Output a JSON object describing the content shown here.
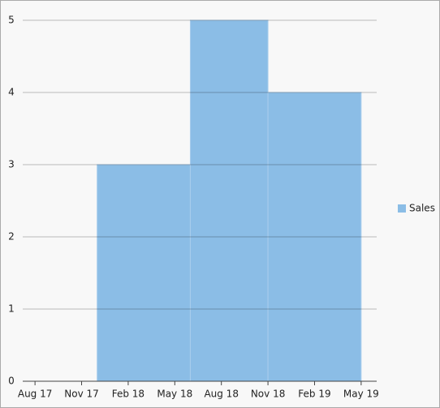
{
  "chart_data": {
    "type": "histogram",
    "bins": [
      "2017-07",
      "2017-12",
      "2018-06",
      "2018-11",
      "2019-05"
    ],
    "series": [
      {
        "name": "Sales",
        "color": "#8bbde6",
        "values": [
          0,
          3,
          5,
          4
        ]
      }
    ],
    "xlim": [
      "2017-07",
      "2019-06"
    ],
    "xticks": [
      {
        "value": "2017-08",
        "label": "Aug 17"
      },
      {
        "value": "2017-11",
        "label": "Nov 17"
      },
      {
        "value": "2018-02",
        "label": "Feb 18"
      },
      {
        "value": "2018-05",
        "label": "May 18"
      },
      {
        "value": "2018-08",
        "label": "Aug 18"
      },
      {
        "value": "2018-11",
        "label": "Nov 18"
      },
      {
        "value": "2019-02",
        "label": "Feb 19"
      },
      {
        "value": "2019-05",
        "label": "May 19"
      }
    ],
    "ylim": [
      0,
      5
    ],
    "yticks": [
      0,
      1,
      2,
      3,
      4,
      5
    ],
    "grid": true,
    "legend": "right"
  }
}
